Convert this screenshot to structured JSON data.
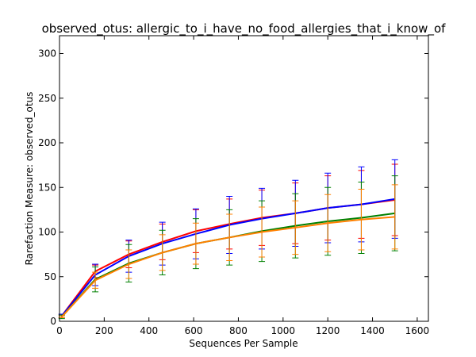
{
  "chart_data": {
    "type": "line",
    "title": "observed_otus: allergic_to_i_have_no_food_allergies_that_i_know_of",
    "xlabel": "Sequences Per Sample",
    "ylabel": "Rarefaction Measure: observed_otus",
    "xlim": [
      0,
      1650
    ],
    "ylim": [
      0,
      320
    ],
    "xticks": [
      0,
      200,
      400,
      600,
      800,
      1000,
      1200,
      1400,
      1600
    ],
    "yticks": [
      0,
      50,
      100,
      150,
      200,
      250,
      300
    ],
    "x": [
      10,
      160,
      310,
      460,
      610,
      760,
      905,
      1055,
      1200,
      1350,
      1500
    ],
    "grid": false,
    "series": [
      {
        "color": "#ff0000",
        "values": [
          6,
          56,
          75,
          89,
          101,
          109,
          116,
          121,
          127,
          131,
          136
        ],
        "err": [
          2,
          7,
          15,
          20,
          24,
          28,
          31,
          34,
          36,
          38,
          40
        ]
      },
      {
        "color": "#0000ff",
        "values": [
          6,
          52,
          73,
          87,
          98,
          108,
          115,
          121,
          127,
          131,
          137
        ],
        "err": [
          2,
          12,
          18,
          24,
          28,
          32,
          34,
          37,
          39,
          42,
          44
        ]
      },
      {
        "color": "#008000",
        "values": [
          5,
          47,
          65,
          77,
          87,
          94,
          101,
          107,
          112,
          116,
          121
        ],
        "err": [
          2,
          14,
          21,
          25,
          28,
          31,
          34,
          36,
          38,
          40,
          42
        ]
      },
      {
        "color": "#ff8000",
        "values": [
          5,
          46,
          64,
          77,
          87,
          94,
          100,
          105,
          110,
          114,
          117
        ],
        "err": [
          1,
          9,
          16,
          20,
          23,
          26,
          28,
          30,
          32,
          34,
          36
        ]
      }
    ]
  }
}
